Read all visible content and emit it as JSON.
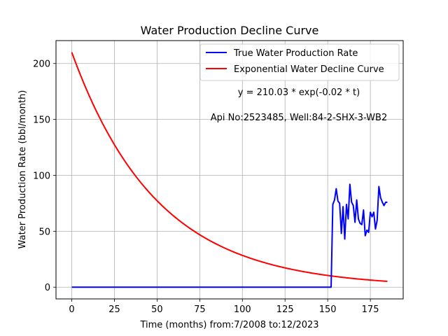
{
  "chart_data": {
    "type": "line",
    "title": "Water Production Decline Curve",
    "xlabel": "Time (months) from:7/2008 to:12/2023",
    "ylabel": "Water Production Rate (bbl/month)",
    "xlim": [
      -9.25,
      194.25
    ],
    "ylim": [
      -10.5,
      220.5
    ],
    "xticks": [
      0,
      25,
      50,
      75,
      100,
      125,
      150,
      175
    ],
    "yticks": [
      0,
      50,
      100,
      150,
      200
    ],
    "grid": true,
    "legend_position": "top-right",
    "annotations": [
      "y = 210.03 * exp(-0.02 * t)",
      "Api No:2523485, Well:84-2-SHX-3-WB2"
    ],
    "series": [
      {
        "name": "True Water Production Rate",
        "color": "#0000ff",
        "x": [
          0,
          152,
          153,
          154,
          155,
          156,
          157,
          158,
          159,
          160,
          161,
          162,
          163,
          164,
          165,
          166,
          167,
          168,
          169,
          170,
          171,
          172,
          173,
          174,
          175,
          176,
          177,
          178,
          179,
          180,
          181,
          182,
          183,
          184,
          185
        ],
        "y": [
          0,
          0,
          74,
          78,
          88,
          77,
          75,
          48,
          72,
          43,
          74,
          61,
          92,
          76,
          73,
          58,
          78,
          61,
          57,
          56,
          69,
          46,
          51,
          49,
          67,
          63,
          67,
          52,
          60,
          90,
          80,
          76,
          73,
          76,
          76
        ]
      },
      {
        "name": "Exponential Water Decline Curve",
        "color": "#ff0000",
        "equation": {
          "a": 210.03,
          "b": -0.02
        },
        "x_range": [
          0,
          185
        ]
      }
    ]
  }
}
